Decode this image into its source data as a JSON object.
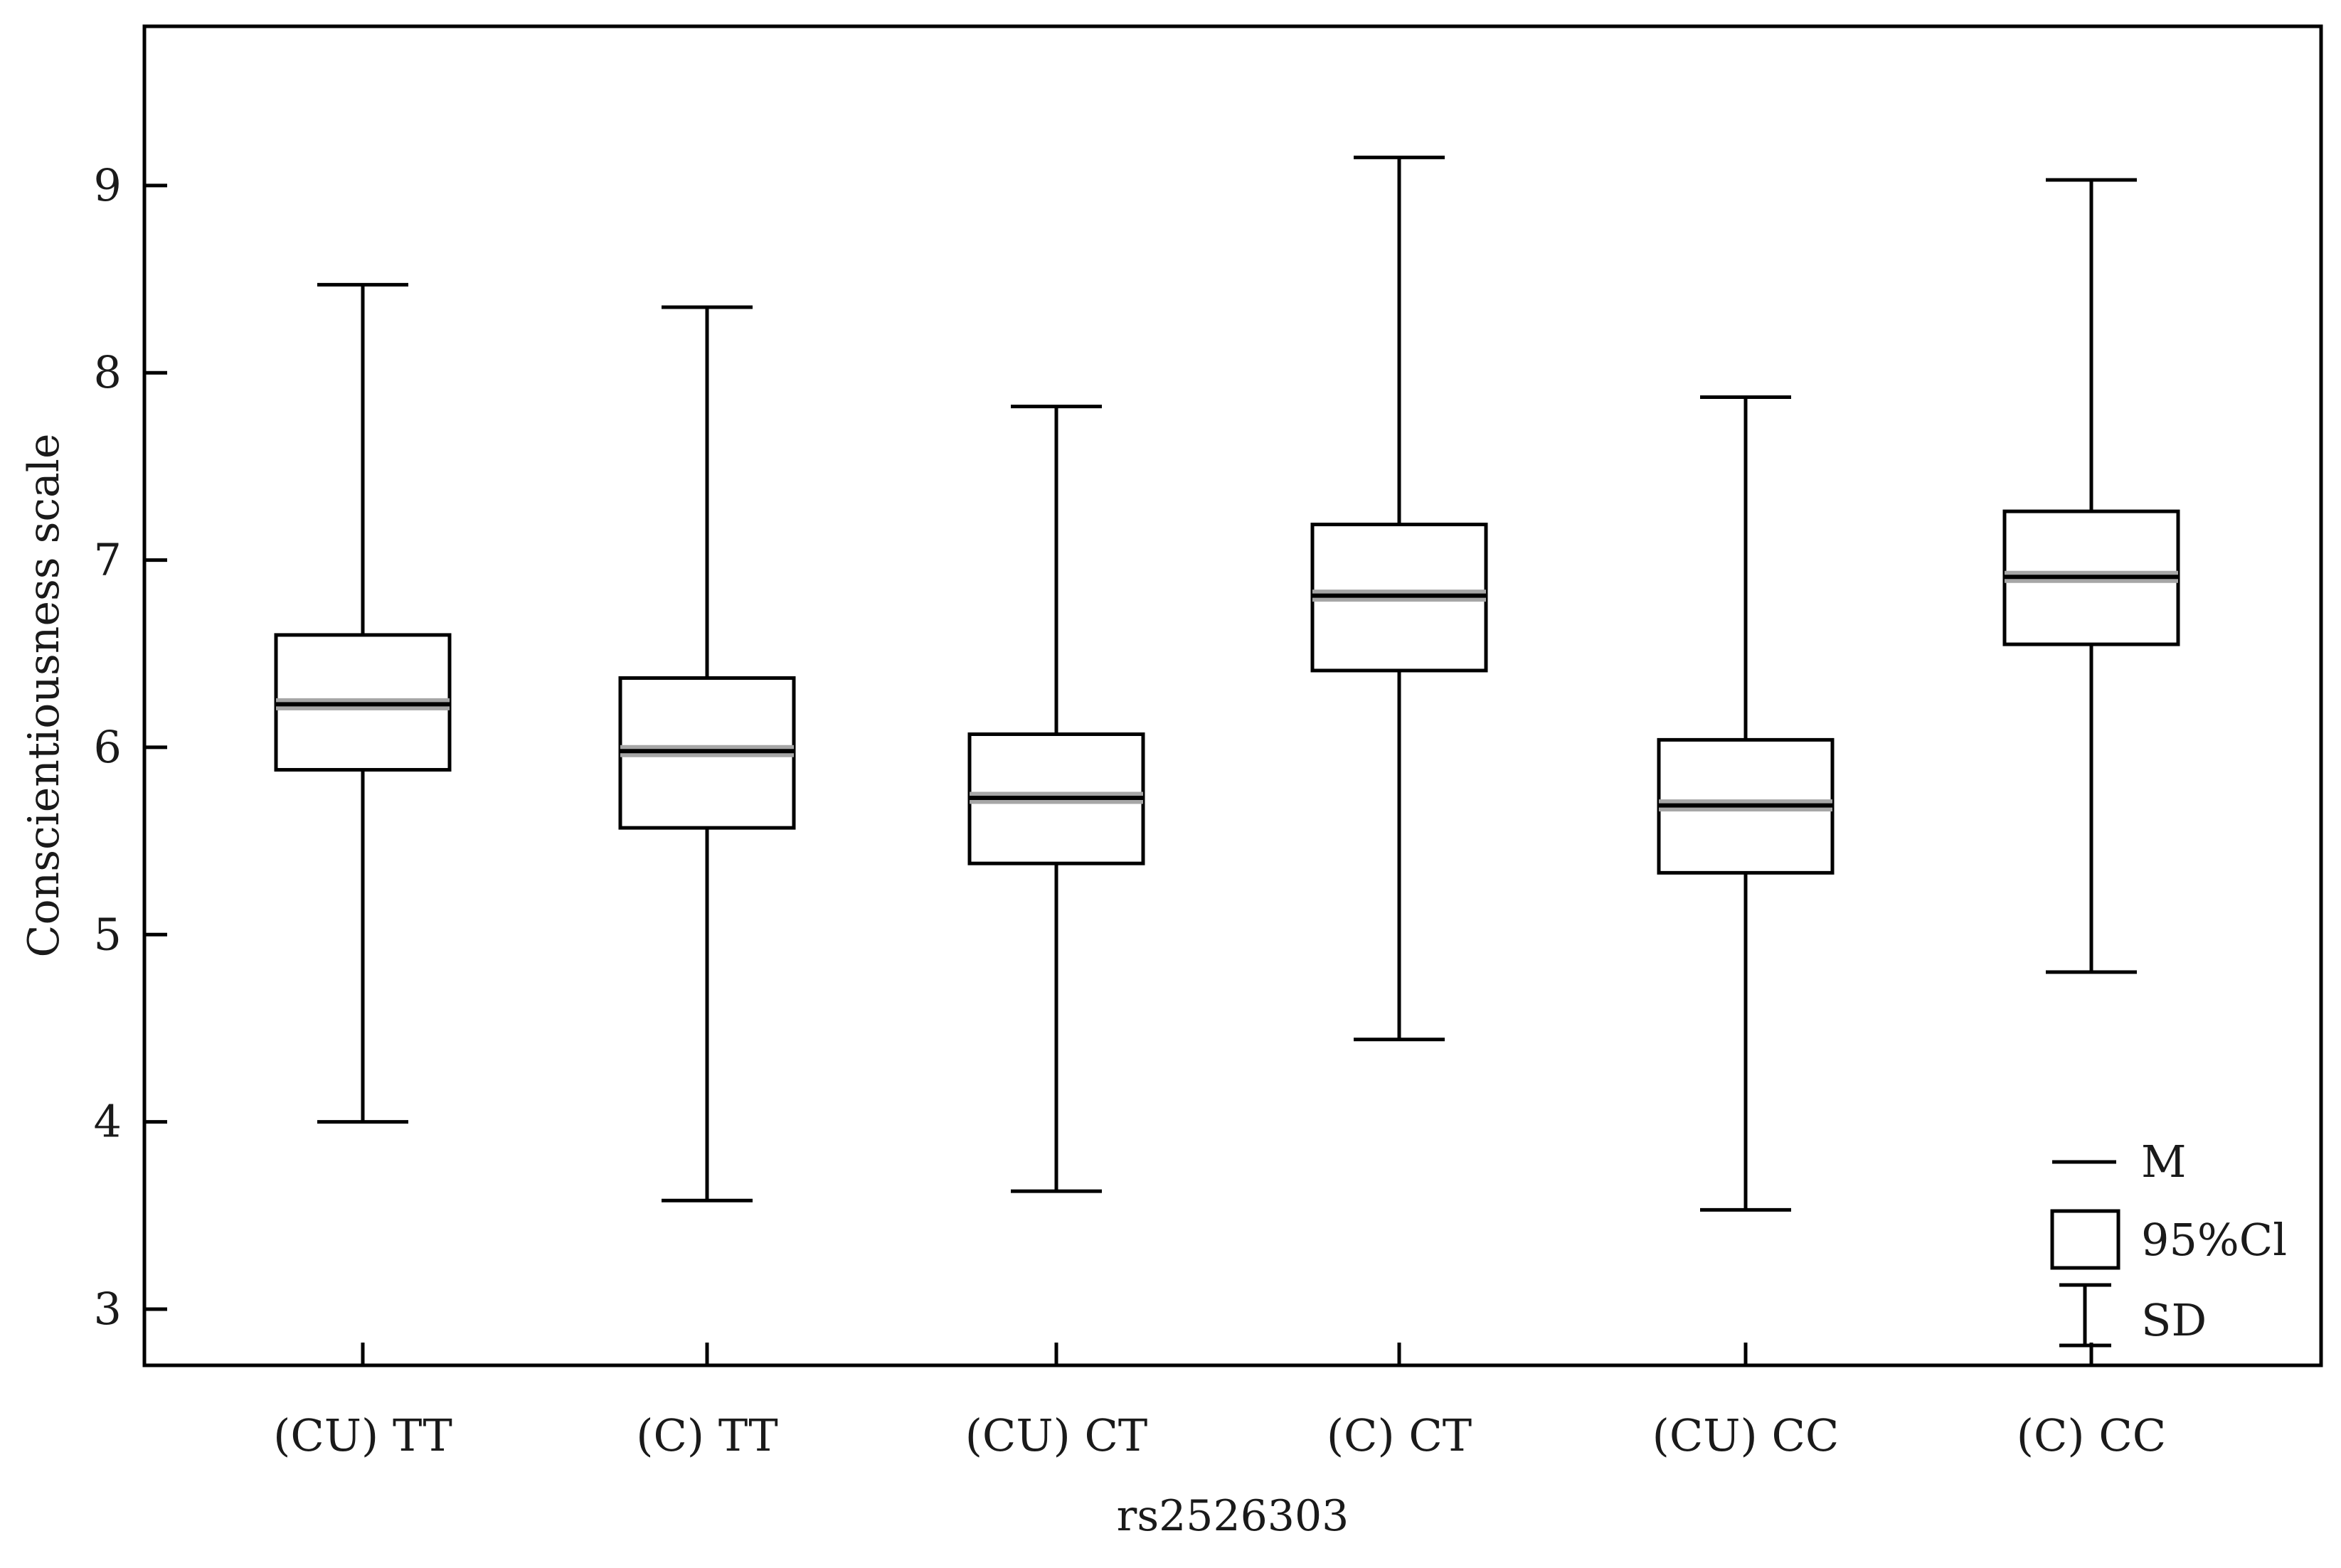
{
  "chart_data": {
    "type": "box",
    "xlabel": "rs2526303",
    "ylabel": "Conscientiousness scale",
    "ylim": [
      2.7,
      9.85
    ],
    "yticks": [
      3,
      4,
      5,
      6,
      7,
      8,
      9
    ],
    "categories": [
      "(CU) TT",
      "(C) TT",
      "(CU) CT",
      "(C) CT",
      "(CU) CC",
      "(C) CC"
    ],
    "mean": [
      6.23,
      5.98,
      5.73,
      6.81,
      5.69,
      6.91
    ],
    "ci95_low": [
      5.88,
      5.57,
      5.38,
      6.41,
      5.33,
      6.55
    ],
    "ci95_high": [
      6.6,
      6.37,
      6.07,
      7.19,
      6.04,
      7.26
    ],
    "sd_low": [
      4.0,
      3.58,
      3.63,
      4.44,
      3.53,
      4.8
    ],
    "sd_high": [
      8.47,
      8.35,
      7.82,
      9.15,
      7.87,
      9.03
    ],
    "legend": {
      "position": "bottom-right",
      "items": [
        {
          "symbol": "line",
          "label": "M"
        },
        {
          "symbol": "box",
          "label": "95%Cl"
        },
        {
          "symbol": "whisker",
          "label": "SD"
        }
      ]
    },
    "colors": {
      "line": "#000000",
      "mean_halo": "#a6a6a6",
      "box_fill": "#ffffff"
    }
  }
}
